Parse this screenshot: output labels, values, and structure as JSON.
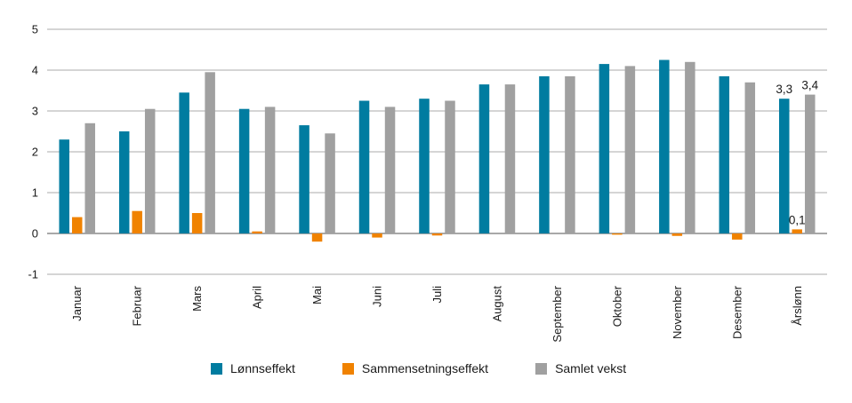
{
  "figure": {
    "background": "#ffffff"
  },
  "chart_data": {
    "type": "bar",
    "title": "",
    "categories": [
      "Januar",
      "Februar",
      "Mars",
      "April",
      "Mai",
      "Juni",
      "Juli",
      "August",
      "September",
      "Oktober",
      "November",
      "Desember",
      "Årslønn"
    ],
    "series": [
      {
        "name": "Lønnseffekt",
        "color": "#007CA0",
        "values": [
          2.3,
          2.5,
          3.45,
          3.05,
          2.65,
          3.25,
          3.3,
          3.65,
          3.85,
          4.15,
          4.25,
          3.85,
          3.3
        ]
      },
      {
        "name": "Sammensetningseffekt",
        "color": "#F08200",
        "values": [
          0.4,
          0.55,
          0.5,
          0.05,
          -0.2,
          -0.1,
          -0.05,
          0,
          0,
          -0.03,
          -0.06,
          -0.15,
          0.1
        ]
      },
      {
        "name": "Samlet vekst",
        "color": "#A0A0A0",
        "values": [
          2.7,
          3.05,
          3.95,
          3.1,
          2.45,
          3.1,
          3.25,
          3.65,
          3.85,
          4.1,
          4.2,
          3.7,
          3.4
        ]
      }
    ],
    "ylim": [
      -1,
      5
    ],
    "yticks": [
      5,
      4,
      3,
      2,
      1,
      0,
      -1
    ],
    "grid": true,
    "legend_position": "bottom",
    "xlabel": "",
    "ylabel": "",
    "value_labels": [
      {
        "series": "Lønnseffekt",
        "category": "Årslønn",
        "text": "3,3"
      },
      {
        "series": "Sammensetningseffekt",
        "category": "Årslønn",
        "text": "0,1"
      },
      {
        "series": "Samlet vekst",
        "category": "Årslønn",
        "text": "3,4"
      }
    ],
    "colors": {
      "gridline": "#ABABAB",
      "zero_axis": "#8C8C8C",
      "text": "#1A1A1A"
    }
  }
}
